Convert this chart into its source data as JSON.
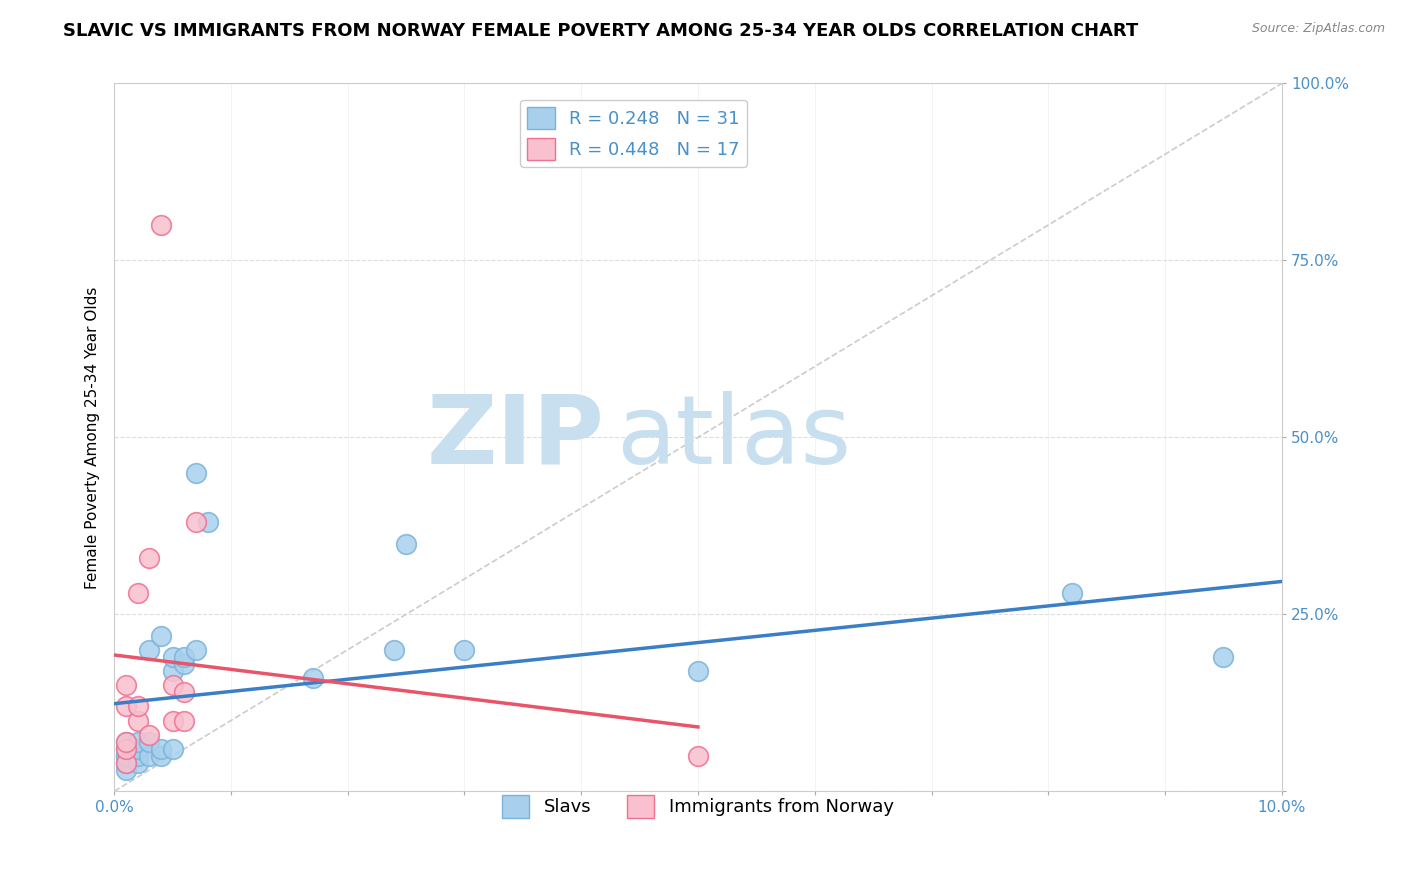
{
  "title": "SLAVIC VS IMMIGRANTS FROM NORWAY FEMALE POVERTY AMONG 25-34 YEAR OLDS CORRELATION CHART",
  "source": "Source: ZipAtlas.com",
  "ylabel": "Female Poverty Among 25-34 Year Olds",
  "xlim": [
    0.0,
    0.1
  ],
  "ylim": [
    0.0,
    1.0
  ],
  "xticks": [
    0.0,
    0.01,
    0.02,
    0.03,
    0.04,
    0.05,
    0.06,
    0.07,
    0.08,
    0.09,
    0.1
  ],
  "xticklabels": [
    "0.0%",
    "",
    "",
    "",
    "",
    "",
    "",
    "",
    "",
    "",
    "10.0%"
  ],
  "yticks": [
    0.0,
    0.25,
    0.5,
    0.75,
    1.0
  ],
  "yticklabels": [
    "",
    "25.0%",
    "50.0%",
    "75.0%",
    "100.0%"
  ],
  "slavs_x": [
    0.001,
    0.001,
    0.001,
    0.001,
    0.001,
    0.001,
    0.002,
    0.002,
    0.002,
    0.002,
    0.003,
    0.003,
    0.003,
    0.004,
    0.004,
    0.004,
    0.005,
    0.005,
    0.005,
    0.006,
    0.006,
    0.007,
    0.007,
    0.008,
    0.017,
    0.024,
    0.025,
    0.03,
    0.05,
    0.082,
    0.095
  ],
  "slavs_y": [
    0.03,
    0.04,
    0.05,
    0.05,
    0.06,
    0.07,
    0.04,
    0.05,
    0.06,
    0.07,
    0.05,
    0.07,
    0.2,
    0.05,
    0.06,
    0.22,
    0.06,
    0.17,
    0.19,
    0.18,
    0.19,
    0.2,
    0.45,
    0.38,
    0.16,
    0.2,
    0.35,
    0.2,
    0.17,
    0.28,
    0.19
  ],
  "norway_x": [
    0.001,
    0.001,
    0.001,
    0.001,
    0.001,
    0.002,
    0.002,
    0.002,
    0.003,
    0.003,
    0.004,
    0.005,
    0.005,
    0.006,
    0.006,
    0.007,
    0.05
  ],
  "norway_y": [
    0.04,
    0.06,
    0.07,
    0.12,
    0.15,
    0.1,
    0.12,
    0.28,
    0.08,
    0.33,
    0.8,
    0.1,
    0.15,
    0.1,
    0.14,
    0.38,
    0.05
  ],
  "slavs_R": 0.248,
  "slavs_N": 31,
  "norway_R": 0.448,
  "norway_N": 17,
  "slavs_color": "#a8d0ed",
  "slavs_edge_color": "#7ab3d9",
  "norway_color": "#f9c0cf",
  "norway_edge_color": "#f07090",
  "slavs_line_color": "#3a7ec6",
  "norway_line_color": "#e8556a",
  "ref_line_color": "#cccccc",
  "background_color": "#ffffff",
  "watermark_zip": "ZIP",
  "watermark_atlas": "atlas",
  "watermark_color": "#c8dff0",
  "grid_color": "#dddddd",
  "title_fontsize": 13,
  "label_fontsize": 11,
  "tick_fontsize": 11,
  "legend_fontsize": 13,
  "tick_label_color": "#4a90c8"
}
